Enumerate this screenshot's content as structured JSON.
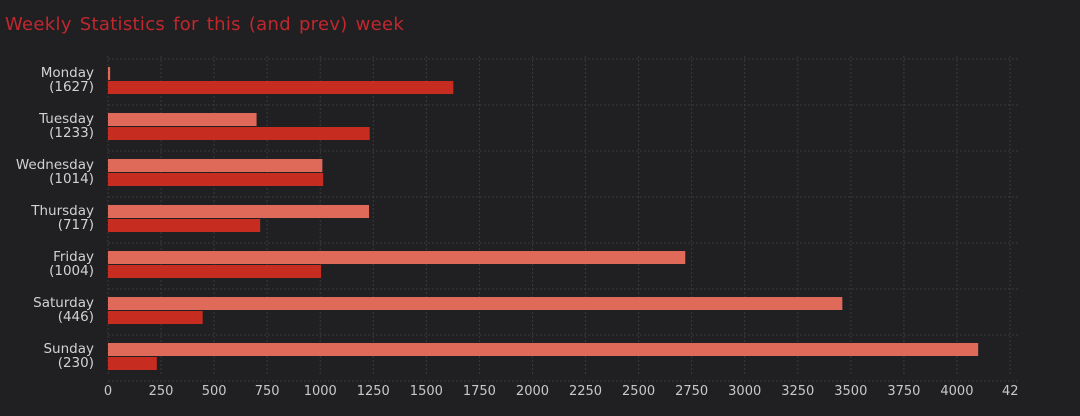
{
  "chart_data": {
    "type": "bar",
    "orientation": "horizontal",
    "title": "Weekly Statistics for this (and prev) week",
    "categories": [
      "Monday",
      "Tuesday",
      "Wednesday",
      "Thursday",
      "Friday",
      "Saturday",
      "Sunday"
    ],
    "category_counts": [
      "(1627)",
      "(1233)",
      "(1014)",
      "(717)",
      "(1004)",
      "(446)",
      "(230)"
    ],
    "series": [
      {
        "color": "#e06a5a",
        "values": [
          10,
          700,
          1010,
          1230,
          2720,
          3460,
          4100
        ]
      },
      {
        "color": "#c62c20",
        "values": [
          1627,
          1233,
          1014,
          717,
          1004,
          446,
          230
        ]
      }
    ],
    "x_ticks": [
      "0",
      "250",
      "500",
      "750",
      "1000",
      "1250",
      "1500",
      "1750",
      "2000",
      "2250",
      "2500",
      "2750",
      "3000",
      "3250",
      "3500",
      "3750",
      "4000",
      "42"
    ],
    "xlim": [
      0,
      4250
    ],
    "grid": true,
    "legend": "none"
  },
  "colors": {
    "background": "#202022",
    "title": "#c1272d"
  }
}
